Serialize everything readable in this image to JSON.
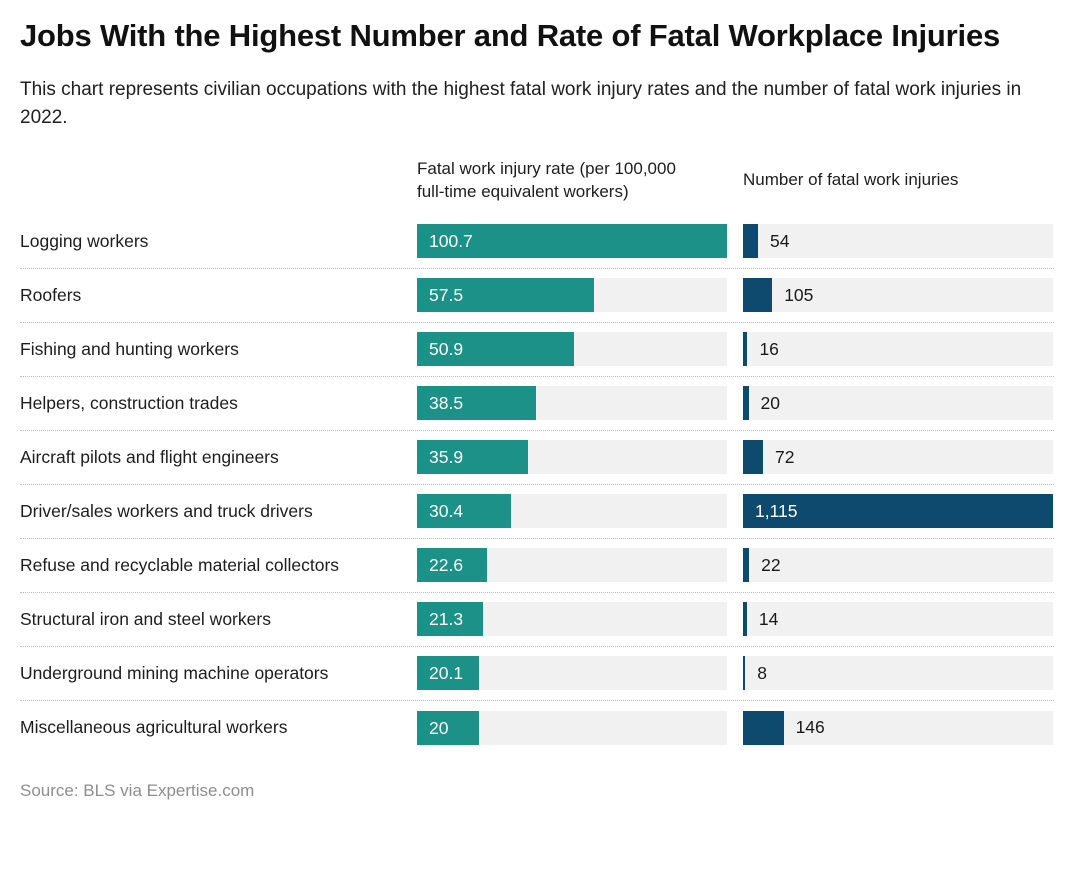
{
  "title": "Jobs With the Highest Number and Rate of Fatal Workplace Injuries",
  "subtitle": "This chart represents civilian occupations with the highest fatal work injury rates and the number of fatal work injuries in 2022.",
  "source": "Source: BLS via Expertise.com",
  "colors": {
    "rate_bar": "#1b9187",
    "count_bar": "#0d4a6e",
    "track": "#f1f1f1"
  },
  "chart_data": {
    "type": "bar",
    "orientation": "horizontal",
    "grid": false,
    "legend_position": "column-headers",
    "categories": [
      "Logging workers",
      "Roofers",
      "Fishing and hunting workers",
      "Helpers, construction trades",
      "Aircraft pilots and flight engineers",
      "Driver/sales workers and truck drivers",
      "Refuse and recyclable material collectors",
      "Structural iron and steel workers",
      "Underground mining machine operators",
      "Miscellaneous agricultural workers"
    ],
    "series": [
      {
        "name": "Fatal work injury rate (per 100,000 full-time equivalent workers)",
        "values": [
          100.7,
          57.5,
          50.9,
          38.5,
          35.9,
          30.4,
          22.6,
          21.3,
          20.1,
          20
        ],
        "display": [
          "100.7",
          "57.5",
          "50.9",
          "38.5",
          "35.9",
          "30.4",
          "22.6",
          "21.3",
          "20.1",
          "20"
        ],
        "axis_max": 100.7
      },
      {
        "name": "Number of fatal work injuries",
        "values": [
          54,
          105,
          16,
          20,
          72,
          1115,
          22,
          14,
          8,
          146
        ],
        "display": [
          "54",
          "105",
          "16",
          "20",
          "72",
          "1,115",
          "22",
          "14",
          "8",
          "146"
        ],
        "axis_max": 1115
      }
    ]
  }
}
